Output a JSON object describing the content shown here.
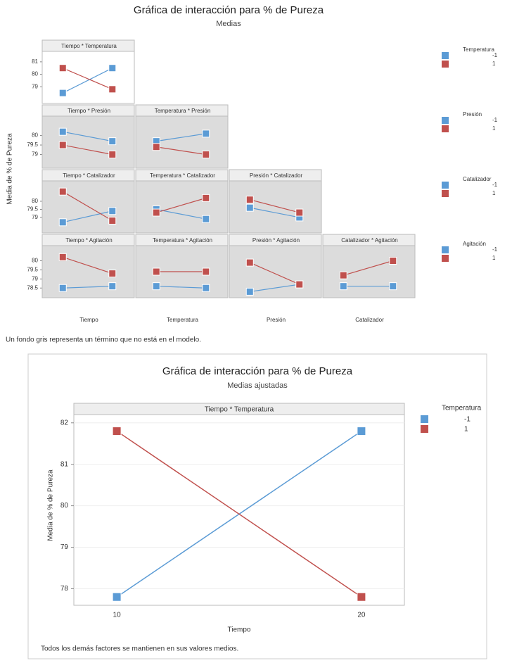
{
  "chart_data": [
    {
      "type": "interaction-matrix",
      "title": "Gráfica de interacción para % de Pureza",
      "subtitle": "Medias",
      "y_label": "Media de % de Pureza",
      "x_labels": [
        "Tiempo",
        "Temperatura",
        "Presión",
        "Catalizador"
      ],
      "rows": [
        {
          "ylim": [
            78,
            81.5
          ],
          "yticks": [
            79,
            80,
            81
          ],
          "legend": {
            "title": "Temperatura",
            "entries": [
              {
                "name": "-1",
                "color": "#5b9bd5"
              },
              {
                "name": "1",
                "color": "#c0504d"
              }
            ]
          },
          "panels": [
            {
              "label": "Tiempo * Temperatura",
              "in_model": true,
              "series": [
                {
                  "values": [
                    78.5,
                    80.5
                  ]
                },
                {
                  "values": [
                    80.5,
                    78.8
                  ]
                }
              ]
            }
          ]
        },
        {
          "ylim": [
            78.5,
            80.8
          ],
          "yticks": [
            79,
            79.5,
            80
          ],
          "legend": {
            "title": "Presión",
            "entries": [
              {
                "name": "-1",
                "color": "#5b9bd5"
              },
              {
                "name": "1",
                "color": "#c0504d"
              }
            ]
          },
          "panels": [
            {
              "label": "Tiempo * Presión",
              "in_model": false,
              "series": [
                {
                  "values": [
                    80.2,
                    79.7
                  ]
                },
                {
                  "values": [
                    79.5,
                    79.0
                  ]
                }
              ]
            },
            {
              "label": "Temperatura * Presión",
              "in_model": false,
              "series": [
                {
                  "values": [
                    79.7,
                    80.1
                  ]
                },
                {
                  "values": [
                    79.4,
                    79.0
                  ]
                }
              ]
            }
          ]
        },
        {
          "ylim": [
            78.3,
            81
          ],
          "yticks": [
            79,
            79.5,
            80
          ],
          "legend": {
            "title": "Catalizador",
            "entries": [
              {
                "name": "-1",
                "color": "#5b9bd5"
              },
              {
                "name": "1",
                "color": "#c0504d"
              }
            ]
          },
          "panels": [
            {
              "label": "Tiempo * Catalizador",
              "in_model": false,
              "series": [
                {
                  "values": [
                    78.7,
                    79.4
                  ]
                },
                {
                  "values": [
                    80.6,
                    78.8
                  ]
                }
              ]
            },
            {
              "label": "Temperatura * Catalizador",
              "in_model": false,
              "series": [
                {
                  "values": [
                    79.5,
                    78.9
                  ]
                },
                {
                  "values": [
                    79.3,
                    80.2
                  ]
                }
              ]
            },
            {
              "label": "Presión * Catalizador",
              "in_model": false,
              "series": [
                {
                  "values": [
                    79.6,
                    79.0
                  ]
                },
                {
                  "values": [
                    80.1,
                    79.3
                  ]
                }
              ]
            }
          ]
        },
        {
          "ylim": [
            78.2,
            80.6
          ],
          "yticks": [
            78.5,
            79,
            79.5,
            80
          ],
          "legend": {
            "title": "Agitación",
            "entries": [
              {
                "name": "-1",
                "color": "#5b9bd5"
              },
              {
                "name": "1",
                "color": "#c0504d"
              }
            ]
          },
          "panels": [
            {
              "label": "Tiempo * Agitación",
              "in_model": false,
              "series": [
                {
                  "values": [
                    78.5,
                    78.6
                  ]
                },
                {
                  "values": [
                    80.2,
                    79.3
                  ]
                }
              ]
            },
            {
              "label": "Temperatura * Agitación",
              "in_model": false,
              "series": [
                {
                  "values": [
                    78.6,
                    78.5
                  ]
                },
                {
                  "values": [
                    79.4,
                    79.4
                  ]
                }
              ]
            },
            {
              "label": "Presión * Agitación",
              "in_model": false,
              "series": [
                {
                  "values": [
                    78.3,
                    78.7
                  ]
                },
                {
                  "values": [
                    79.9,
                    78.7
                  ]
                }
              ]
            },
            {
              "label": "Catalizador * Agitación",
              "in_model": false,
              "series": [
                {
                  "values": [
                    78.6,
                    78.6
                  ]
                },
                {
                  "values": [
                    79.2,
                    80.0
                  ]
                }
              ]
            }
          ]
        }
      ],
      "note": "Un fondo gris representa un término que no está en el modelo."
    },
    {
      "type": "line",
      "title": "Gráfica de interacción para % de Pureza",
      "subtitle": "Medias ajustadas",
      "strip_label": "Tiempo * Temperatura",
      "x_label": "Tiempo",
      "y_label": "Media de % de Pureza",
      "categories": [
        "10",
        "20"
      ],
      "legend_title": "Temperatura",
      "series": [
        {
          "name": "-1",
          "color": "#5b9bd5",
          "values": [
            77.8,
            81.8
          ]
        },
        {
          "name": "1",
          "color": "#c0504d",
          "values": [
            81.8,
            77.8
          ]
        }
      ],
      "ylim": [
        77.6,
        82.2
      ],
      "yticks": [
        78,
        79,
        80,
        81,
        82
      ],
      "grid": true,
      "note": "Todos los demás factores se mantienen en sus valores medios."
    }
  ]
}
